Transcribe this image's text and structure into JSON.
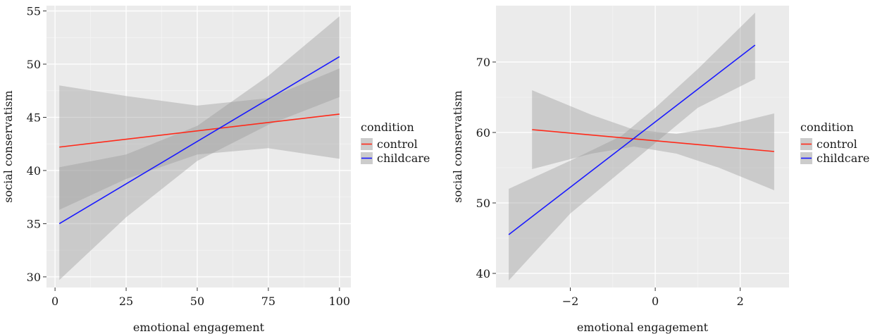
{
  "chart_data": [
    {
      "type": "line",
      "xlabel": "emotional engagement",
      "ylabel": "social conservatism",
      "xlim": [
        -3,
        104
      ],
      "ylim": [
        29,
        55.5
      ],
      "xticks": [
        0,
        25,
        50,
        75,
        100
      ],
      "yticks": [
        30,
        35,
        40,
        45,
        50,
        55
      ],
      "grid": true,
      "legend": {
        "title": "condition",
        "position": "right",
        "entries": [
          "control",
          "childcare"
        ]
      },
      "series": [
        {
          "name": "control",
          "color": "#ff2a1a",
          "x": [
            1.5,
            100
          ],
          "y": [
            42.2,
            45.3
          ],
          "band": {
            "x": [
              1.5,
              25,
              50,
              75,
              100
            ],
            "lower": [
              36.3,
              39.2,
              41.5,
              42.1,
              41.1
            ],
            "upper": [
              48.0,
              47.0,
              46.1,
              46.8,
              49.6
            ]
          }
        },
        {
          "name": "childcare",
          "color": "#1a1aff",
          "x": [
            1.5,
            100
          ],
          "y": [
            35.0,
            50.7
          ],
          "band": {
            "x": [
              1.5,
              25,
              50,
              75,
              100
            ],
            "lower": [
              29.7,
              35.6,
              40.9,
              44.3,
              46.9
            ],
            "upper": [
              40.3,
              41.5,
              44.2,
              48.9,
              54.5
            ]
          }
        }
      ]
    },
    {
      "type": "line",
      "xlabel": "emotional engagement",
      "ylabel": "social conservatism",
      "xlim": [
        -3.75,
        3.15
      ],
      "ylim": [
        38,
        78
      ],
      "xticks": [
        -2,
        0,
        2
      ],
      "xtick_labels": [
        "−2",
        "0",
        "2"
      ],
      "yticks": [
        40,
        50,
        60,
        70
      ],
      "grid": true,
      "legend": {
        "title": "condition",
        "position": "right",
        "entries": [
          "control",
          "childcare"
        ]
      },
      "series": [
        {
          "name": "control",
          "color": "#ff2a1a",
          "x": [
            -2.9,
            2.8
          ],
          "y": [
            60.4,
            57.3
          ],
          "band": {
            "x": [
              -2.9,
              -1.5,
              -0.5,
              0.5,
              1.5,
              2.8
            ],
            "lower": [
              54.8,
              57.0,
              58.0,
              57.0,
              55.0,
              51.8
            ],
            "upper": [
              66.0,
              62.5,
              60.4,
              59.8,
              60.8,
              62.7
            ]
          }
        },
        {
          "name": "childcare",
          "color": "#1a1aff",
          "x": [
            -3.45,
            2.35
          ],
          "y": [
            45.5,
            72.4
          ],
          "band": {
            "x": [
              -3.45,
              -2,
              -0.8,
              0,
              1,
              2.35
            ],
            "lower": [
              39.0,
              48.5,
              54.5,
              58.5,
              63.5,
              67.6
            ],
            "upper": [
              52.0,
              56.0,
              59.5,
              63.5,
              69.0,
              77.0
            ]
          }
        }
      ]
    }
  ]
}
